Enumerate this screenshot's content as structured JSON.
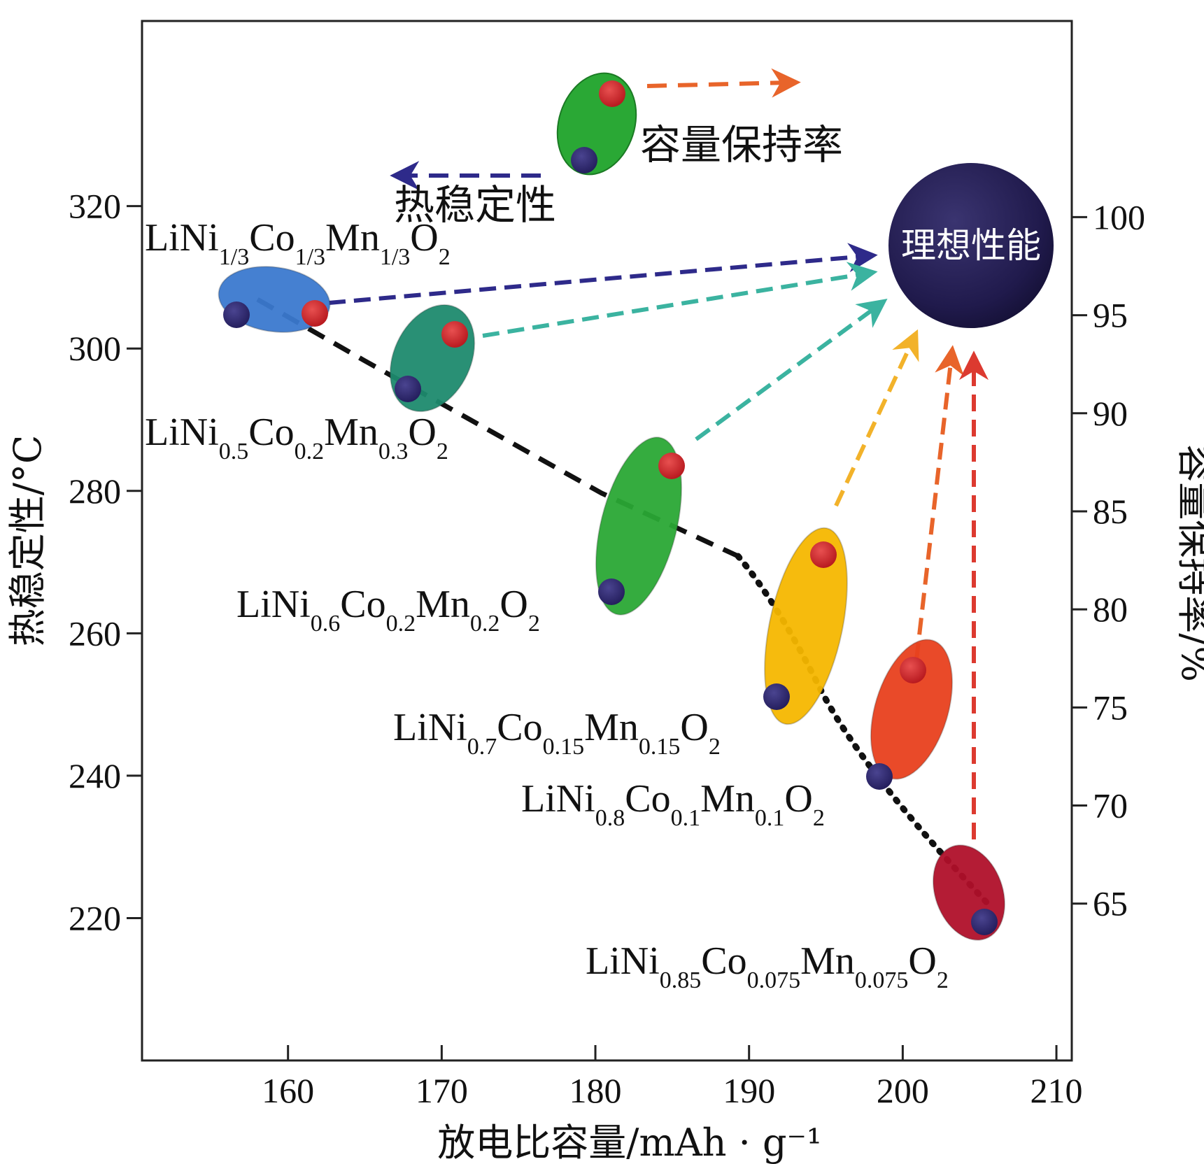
{
  "chart_data": {
    "type": "scatter",
    "xlabel": "放电比容量/mAh · g⁻¹",
    "ylabel_left": "热稳定性/°C",
    "ylabel_right": "容量保持率/%",
    "xlim": [
      150.5,
      211
    ],
    "ylim_left": [
      200,
      346
    ],
    "ylim_right": [
      57,
      110
    ],
    "x_ticks": [
      160,
      170,
      180,
      190,
      200,
      210
    ],
    "y_ticks_left": [
      220,
      240,
      260,
      280,
      300,
      320
    ],
    "y_ticks_right": [
      65,
      70,
      75,
      80,
      85,
      90,
      95,
      100
    ],
    "materials": [
      {
        "formula": "LiNi1/3Co1/3Mn1/3O2",
        "parts": [
          "LiNi",
          "1/3",
          "Co",
          "1/3",
          "Mn",
          "1/3",
          "O",
          "2"
        ],
        "capacity": 160,
        "thermal_stability": 305,
        "capacity_retention": 96,
        "color": "#3b79cf"
      },
      {
        "formula": "LiNi0.5Co0.2Mn0.3O2",
        "parts": [
          "LiNi",
          "0.5",
          "Co",
          "0.2",
          "Mn",
          "0.3",
          "O",
          "2"
        ],
        "capacity": 170,
        "thermal_stability": 295,
        "capacity_retention": 94.5,
        "color": "#1e8a6e"
      },
      {
        "formula": "LiNi0.6Co0.2Mn0.2O2",
        "parts": [
          "LiNi",
          "0.6",
          "Co",
          "0.2",
          "Mn",
          "0.2",
          "O",
          "2"
        ],
        "capacity": 184,
        "thermal_stability": 277,
        "capacity_retention": 88,
        "color": "#2aa835"
      },
      {
        "formula": "LiNi0.7Co0.15Mn0.15O2",
        "parts": [
          "LiNi",
          "0.7",
          "Co",
          "0.15",
          "Mn",
          "0.15",
          "O",
          "2"
        ],
        "capacity": 195,
        "thermal_stability": 260,
        "capacity_retention": 83,
        "color": "#f5b700"
      },
      {
        "formula": "LiNi0.8Co0.1Mn0.1O2",
        "parts": [
          "LiNi",
          "0.8",
          "Co",
          "0.1",
          "Mn",
          "0.1",
          "O",
          "2"
        ],
        "capacity": 201,
        "thermal_stability": 240,
        "capacity_retention": 78,
        "color": "#e8401e"
      },
      {
        "formula": "LiNi0.85Co0.075Mn0.075O2",
        "parts": [
          "LiNi",
          "0.85",
          "Co",
          "0.075",
          "Mn",
          "0.075",
          "O",
          "2"
        ],
        "capacity": 206,
        "thermal_stability": 222,
        "capacity_retention": 67,
        "color": "#b0102a"
      }
    ],
    "legend": {
      "capacity_retention": "容量保持率",
      "thermal_stability": "热稳定性"
    },
    "ideal_label": "理想性能",
    "grid": false
  }
}
